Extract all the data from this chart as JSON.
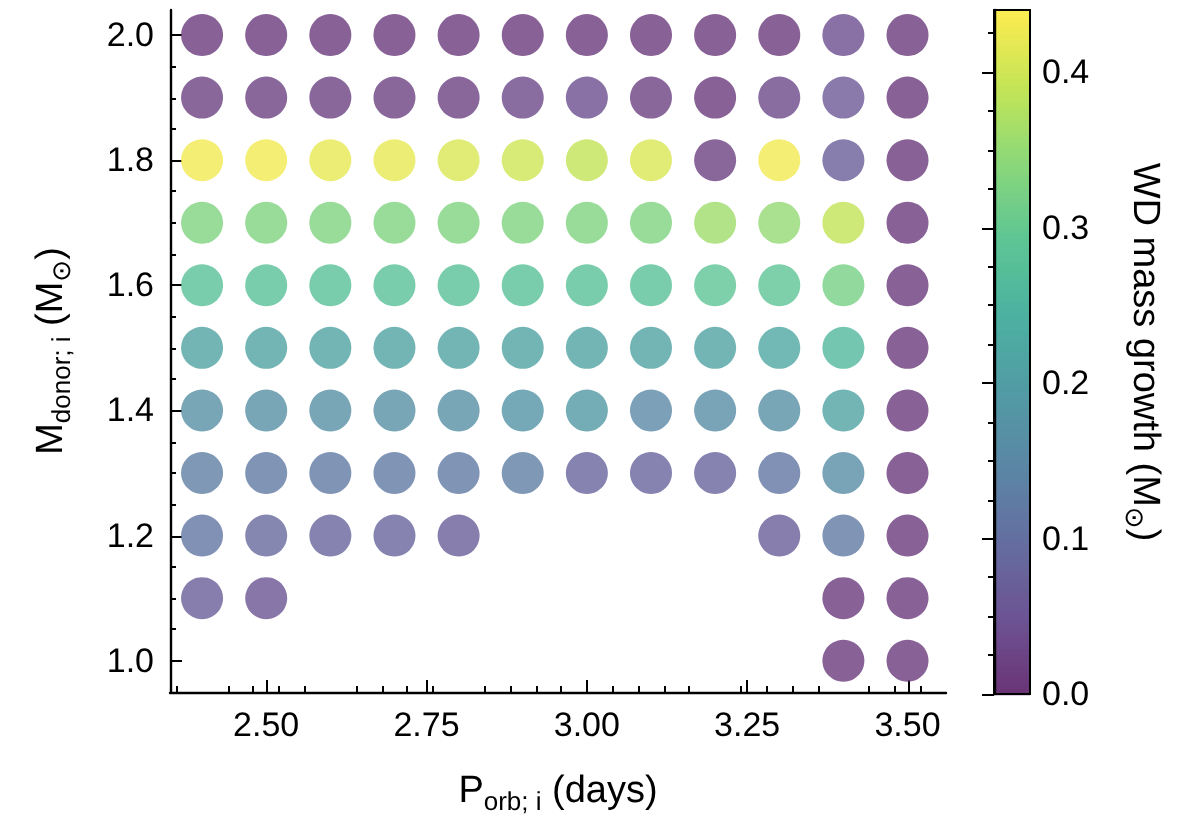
{
  "chart_data": {
    "type": "scatter",
    "xlabel": "P$_{orb; i}$ (days)",
    "ylabel": "M$_{donor; i}$ (M$_{⊙}$)",
    "clabel": "WD mass growth (M$_{⊙}$)",
    "xlim": [
      2.35,
      3.56
    ],
    "xticks": [
      {
        "value": 2.5,
        "label": "2.50"
      },
      {
        "value": 2.75,
        "label": "2.75"
      },
      {
        "value": 3.0,
        "label": "3.00"
      },
      {
        "value": 3.25,
        "label": "3.25"
      },
      {
        "value": 3.5,
        "label": "3.50"
      }
    ],
    "ylim": [
      0.95,
      2.04
    ],
    "yticks": [
      {
        "value": 1.0,
        "label": "1.0"
      },
      {
        "value": 1.2,
        "label": "1.2"
      },
      {
        "value": 1.4,
        "label": "1.4"
      },
      {
        "value": 1.6,
        "label": "1.6"
      },
      {
        "value": 1.8,
        "label": "1.8"
      },
      {
        "value": 2.0,
        "label": "2.0"
      }
    ],
    "clim": [
      0,
      0.44
    ],
    "cticks": [
      {
        "value": 0,
        "label": "0.0"
      },
      0.1,
      0.2,
      0.3,
      0.4
    ],
    "grid": false,
    "marker": "circle",
    "x": [
      2.4,
      2.5,
      2.6,
      2.7,
      2.8,
      2.9,
      3.0,
      3.1,
      3.2,
      3.3,
      3.4,
      3.5,
      2.4,
      2.5,
      2.6,
      2.7,
      2.8,
      2.9,
      3.0,
      3.1,
      3.2,
      3.3,
      3.4,
      3.5,
      2.4,
      2.5,
      2.6,
      2.7,
      2.8,
      2.9,
      3.0,
      3.1,
      3.2,
      3.3,
      3.4,
      3.5,
      2.4,
      2.5,
      2.6,
      2.7,
      2.8,
      2.9,
      3.0,
      3.1,
      3.2,
      3.3,
      3.4,
      3.5,
      2.4,
      2.5,
      2.6,
      2.7,
      2.8,
      2.9,
      3.0,
      3.1,
      3.2,
      3.3,
      3.4,
      3.5,
      2.4,
      2.5,
      2.6,
      2.7,
      2.8,
      2.9,
      3.0,
      3.1,
      3.2,
      3.3,
      3.4,
      3.5,
      2.4,
      2.5,
      2.6,
      2.7,
      2.8,
      2.9,
      3.0,
      3.1,
      3.2,
      3.3,
      3.4,
      3.5,
      2.4,
      2.5,
      2.6,
      2.7,
      2.8,
      2.9,
      3.0,
      3.1,
      3.2,
      3.3,
      3.4,
      3.5,
      2.4,
      2.5,
      2.6,
      2.7,
      2.8,
      3.3,
      3.4,
      3.5,
      2.4,
      2.5,
      3.4,
      3.5,
      3.4,
      3.5
    ],
    "values": [
      2.0,
      2.0,
      2.0,
      2.0,
      2.0,
      2.0,
      2.0,
      2.0,
      2.0,
      2.0,
      2.0,
      2.0,
      1.9,
      1.9,
      1.9,
      1.9,
      1.9,
      1.9,
      1.9,
      1.9,
      1.9,
      1.9,
      1.9,
      1.9,
      1.8,
      1.8,
      1.8,
      1.8,
      1.8,
      1.8,
      1.8,
      1.8,
      1.8,
      1.8,
      1.8,
      1.8,
      1.7,
      1.7,
      1.7,
      1.7,
      1.7,
      1.7,
      1.7,
      1.7,
      1.7,
      1.7,
      1.7,
      1.7,
      1.6,
      1.6,
      1.6,
      1.6,
      1.6,
      1.6,
      1.6,
      1.6,
      1.6,
      1.6,
      1.6,
      1.6,
      1.5,
      1.5,
      1.5,
      1.5,
      1.5,
      1.5,
      1.5,
      1.5,
      1.5,
      1.5,
      1.5,
      1.5,
      1.4,
      1.4,
      1.4,
      1.4,
      1.4,
      1.4,
      1.4,
      1.4,
      1.4,
      1.4,
      1.4,
      1.4,
      1.3,
      1.3,
      1.3,
      1.3,
      1.3,
      1.3,
      1.3,
      1.3,
      1.3,
      1.3,
      1.3,
      1.3,
      1.2,
      1.2,
      1.2,
      1.2,
      1.2,
      1.2,
      1.2,
      1.2,
      1.1,
      1.1,
      1.1,
      1.1,
      1.0,
      1.0
    ],
    "cvalues": [
      0.01,
      0.01,
      0.01,
      0.01,
      0.01,
      0.01,
      0.01,
      0.01,
      0.01,
      0.01,
      0.04,
      0.01,
      0.02,
      0.02,
      0.02,
      0.02,
      0.02,
      0.03,
      0.04,
      0.02,
      0.01,
      0.03,
      0.06,
      0.01,
      0.43,
      0.43,
      0.42,
      0.42,
      0.41,
      0.4,
      0.39,
      0.41,
      0.02,
      0.43,
      0.07,
      0.01,
      0.33,
      0.33,
      0.33,
      0.33,
      0.33,
      0.33,
      0.33,
      0.33,
      0.36,
      0.35,
      0.39,
      0.01,
      0.28,
      0.28,
      0.28,
      0.28,
      0.28,
      0.28,
      0.28,
      0.28,
      0.29,
      0.29,
      0.32,
      0.01,
      0.21,
      0.21,
      0.21,
      0.21,
      0.21,
      0.21,
      0.21,
      0.21,
      0.21,
      0.22,
      0.26,
      0.01,
      0.17,
      0.17,
      0.17,
      0.17,
      0.17,
      0.18,
      0.19,
      0.15,
      0.16,
      0.17,
      0.21,
      0.01,
      0.13,
      0.12,
      0.12,
      0.12,
      0.12,
      0.13,
      0.08,
      0.08,
      0.08,
      0.11,
      0.16,
      0.01,
      0.11,
      0.09,
      0.08,
      0.08,
      0.07,
      0.07,
      0.12,
      0.01,
      0.07,
      0.05,
      0.01,
      0.01,
      0.01,
      0.01
    ]
  }
}
